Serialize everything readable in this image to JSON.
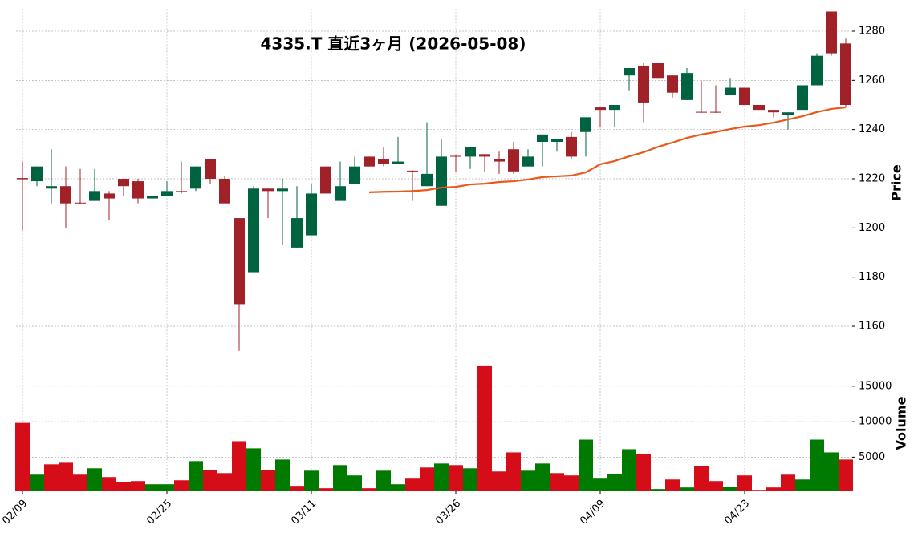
{
  "chart_data": {
    "type": "candlestick",
    "title": "4335.T  直近3ヶ月  (2026-05-08)",
    "ylabel": "Price",
    "categories": [
      "02/09",
      null,
      null,
      null,
      null,
      null,
      null,
      null,
      null,
      null,
      "02/25",
      null,
      null,
      null,
      null,
      null,
      null,
      null,
      null,
      null,
      "03/11",
      null,
      null,
      null,
      null,
      null,
      null,
      null,
      null,
      null,
      "03/26",
      null,
      null,
      null,
      null,
      null,
      null,
      null,
      null,
      null,
      "04/09",
      null,
      null,
      null,
      null,
      null,
      null,
      null,
      null,
      null,
      "04/23",
      null,
      null,
      null,
      null,
      null,
      null,
      null
    ],
    "open": [
      1220.3,
      1219,
      1216,
      1217,
      1210.3,
      1211,
      1214,
      1220,
      1219,
      1212,
      1213,
      1215,
      1216,
      1228,
      1220,
      1204,
      1182,
      1216,
      1215,
      1192,
      1197,
      1225,
      1211,
      1218,
      1229,
      1228,
      1226,
      1223.3,
      1217,
      1209,
      1229.3,
      1229,
      1230,
      1228,
      1232,
      1225,
      1235,
      1235,
      1237,
      1239,
      1249,
      1248,
      1262,
      1266,
      1267,
      1262,
      1252,
      1247.2,
      1247.2,
      1254,
      1257,
      1250,
      1248,
      1246,
      1248,
      1258,
      1288,
      1275
    ],
    "high": [
      1227,
      1225,
      1232,
      1225,
      1224,
      1224,
      1215,
      1220,
      1220,
      1213,
      1219,
      1227,
      1225,
      1228,
      1221,
      1204,
      1217,
      1216,
      1220,
      1217,
      1218,
      1225,
      1227,
      1229,
      1229,
      1233,
      1237,
      1223.5,
      1243,
      1236,
      1229.5,
      1233,
      1230,
      1231,
      1235,
      1232,
      1238,
      1236,
      1239,
      1245,
      1249,
      1250,
      1265,
      1267,
      1267,
      1262,
      1265,
      1260,
      1258,
      1261,
      1257,
      1250,
      1248,
      1247,
      1258,
      1271,
      1288,
      1277
    ],
    "low": [
      1199,
      1217,
      1210,
      1200,
      1209.8,
      1211,
      1203,
      1213,
      1210,
      1212,
      1213,
      1214,
      1215,
      1218,
      1210,
      1150,
      1182,
      1204,
      1193,
      1192,
      1197,
      1214,
      1211,
      1218,
      1225,
      1225,
      1226,
      1211,
      1217,
      1209,
      1223,
      1224,
      1223,
      1222,
      1222,
      1225,
      1225,
      1231,
      1228,
      1229,
      1241,
      1241,
      1256,
      1243,
      1261,
      1253,
      1252,
      1246.8,
      1246.8,
      1254,
      1250,
      1248,
      1245,
      1240,
      1248,
      1258,
      1270,
      1249
    ],
    "close": [
      1219.8,
      1225,
      1217,
      1210,
      1210,
      1215,
      1212,
      1217,
      1212,
      1213,
      1215,
      1214.5,
      1225,
      1220,
      1210,
      1169,
      1216,
      1215,
      1216,
      1204,
      1214,
      1214,
      1217,
      1225,
      1225,
      1226,
      1227,
      1223,
      1222,
      1229,
      1229,
      1233,
      1229,
      1227,
      1223,
      1229,
      1238,
      1236,
      1229,
      1245,
      1248,
      1250,
      1265,
      1251,
      1261,
      1255,
      1263,
      1247,
      1247,
      1257,
      1250,
      1248,
      1247,
      1247,
      1258,
      1270,
      1271,
      1250
    ],
    "up_color": "#006340",
    "down_color": "#a02128",
    "ylim": [
      1150,
      1289
    ],
    "yticks": [
      1160,
      1180,
      1200,
      1220,
      1240,
      1260,
      1280
    ],
    "grid": true,
    "moving_average": {
      "color": "#e8591a",
      "values": [
        null,
        null,
        null,
        null,
        null,
        null,
        null,
        null,
        null,
        null,
        null,
        null,
        null,
        null,
        null,
        null,
        null,
        null,
        null,
        null,
        null,
        null,
        null,
        null,
        1214.5,
        1214.7,
        1214.8,
        1215,
        1215.4,
        1216.4,
        1216.7,
        1217.7,
        1218,
        1218.7,
        1219,
        1219.7,
        1220.7,
        1221,
        1221.3,
        1222.6,
        1225.9,
        1227.2,
        1229.1,
        1230.8,
        1233,
        1234.7,
        1236.6,
        1238,
        1239,
        1240.2,
        1241.2,
        1241.8,
        1242.8,
        1244.1,
        1245.4,
        1247.1,
        1248.4,
        1249
      ]
    },
    "volume": {
      "ylabel": "Volume",
      "ylim": [
        300,
        19270
      ],
      "yticks": [
        5000,
        10000,
        15000
      ],
      "values": [
        9830,
        2530,
        3990,
        4210,
        2530,
        3430,
        2190,
        1520,
        1630,
        1180,
        1180,
        1740,
        4440,
        3200,
        2750,
        7250,
        6240,
        3200,
        4660,
        960,
        3090,
        620,
        3880,
        2420,
        620,
        3090,
        1180,
        1970,
        3540,
        4100,
        3880,
        3430,
        17810,
        2980,
        5670,
        3090,
        4100,
        2750,
        2420,
        7470,
        1970,
        2640,
        6120,
        5450,
        510,
        1850,
        730,
        3760,
        1630,
        840,
        2420,
        390,
        730,
        2530,
        1850,
        7470,
        5670,
        4660
      ],
      "colors": [
        "#d50d18",
        "#007a00",
        "#d50d18",
        "#d50d18",
        "#d50d18",
        "#007a00",
        "#d50d18",
        "#d50d18",
        "#d50d18",
        "#007a00",
        "#007a00",
        "#d50d18",
        "#007a00",
        "#d50d18",
        "#d50d18",
        "#d50d18",
        "#007a00",
        "#d50d18",
        "#007a00",
        "#d50d18",
        "#007a00",
        "#d50d18",
        "#007a00",
        "#007a00",
        "#d50d18",
        "#007a00",
        "#007a00",
        "#d50d18",
        "#d50d18",
        "#007a00",
        "#d50d18",
        "#007a00",
        "#d50d18",
        "#d50d18",
        "#d50d18",
        "#007a00",
        "#007a00",
        "#d50d18",
        "#d50d18",
        "#007a00",
        "#007a00",
        "#007a00",
        "#007a00",
        "#d50d18",
        "#007a00",
        "#d50d18",
        "#007a00",
        "#d50d18",
        "#d50d18",
        "#007a00",
        "#d50d18",
        "#d50d18",
        "#d50d18",
        "#d50d18",
        "#007a00",
        "#007a00",
        "#007a00",
        "#d50d18"
      ]
    }
  }
}
